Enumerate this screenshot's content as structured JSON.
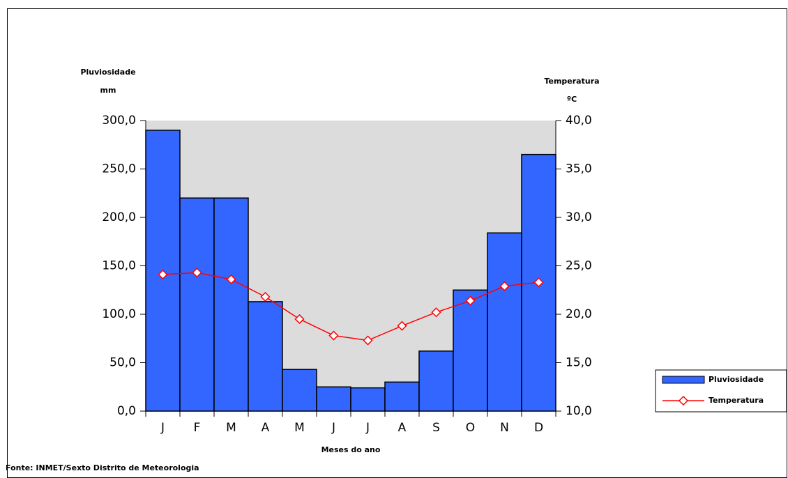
{
  "chart_data": {
    "type": "bar-line",
    "y_label": [
      "Pluviosidade",
      "mm"
    ],
    "y2_label": [
      "Temperatura",
      "ºC"
    ],
    "x_label": "Meses do ano",
    "source": "Fonte: INMET/Sexto Distrito de Meteorologia",
    "categories": [
      "J",
      "F",
      "M",
      "A",
      "M",
      "J",
      "J",
      "A",
      "S",
      "O",
      "N",
      "D"
    ],
    "series": [
      {
        "name": "Pluviosidade",
        "type": "bar",
        "color": "#3366ff",
        "values": [
          290,
          220,
          220,
          113,
          43,
          25,
          24,
          30,
          62,
          125,
          184,
          265
        ]
      },
      {
        "name": "Temperatura",
        "type": "line",
        "color": "#ff0000",
        "axis": "y2",
        "values": [
          24.1,
          24.3,
          23.6,
          21.8,
          19.5,
          17.8,
          17.3,
          18.8,
          20.2,
          21.4,
          22.9,
          23.3
        ]
      }
    ],
    "ylim": [
      0,
      300
    ],
    "yticks": [
      {
        "value": 0,
        "label": "0,0"
      },
      {
        "value": 50,
        "label": "50,0"
      },
      {
        "value": 100,
        "label": "100,0"
      },
      {
        "value": 150,
        "label": "150,0"
      },
      {
        "value": 200,
        "label": "200,0"
      },
      {
        "value": 250,
        "label": "250,0"
      },
      {
        "value": 300,
        "label": "300,0"
      }
    ],
    "y2lim": [
      10,
      40
    ],
    "y2ticks": [
      {
        "value": 10,
        "label": "10,0"
      },
      {
        "value": 15,
        "label": "15,0"
      },
      {
        "value": 20,
        "label": "20,0"
      },
      {
        "value": 25,
        "label": "25,0"
      },
      {
        "value": 30,
        "label": "30,0"
      },
      {
        "value": 35,
        "label": "35,0"
      },
      {
        "value": 40,
        "label": "40,0"
      }
    ],
    "plot_background": "#dcdcdc",
    "legend": "right"
  }
}
